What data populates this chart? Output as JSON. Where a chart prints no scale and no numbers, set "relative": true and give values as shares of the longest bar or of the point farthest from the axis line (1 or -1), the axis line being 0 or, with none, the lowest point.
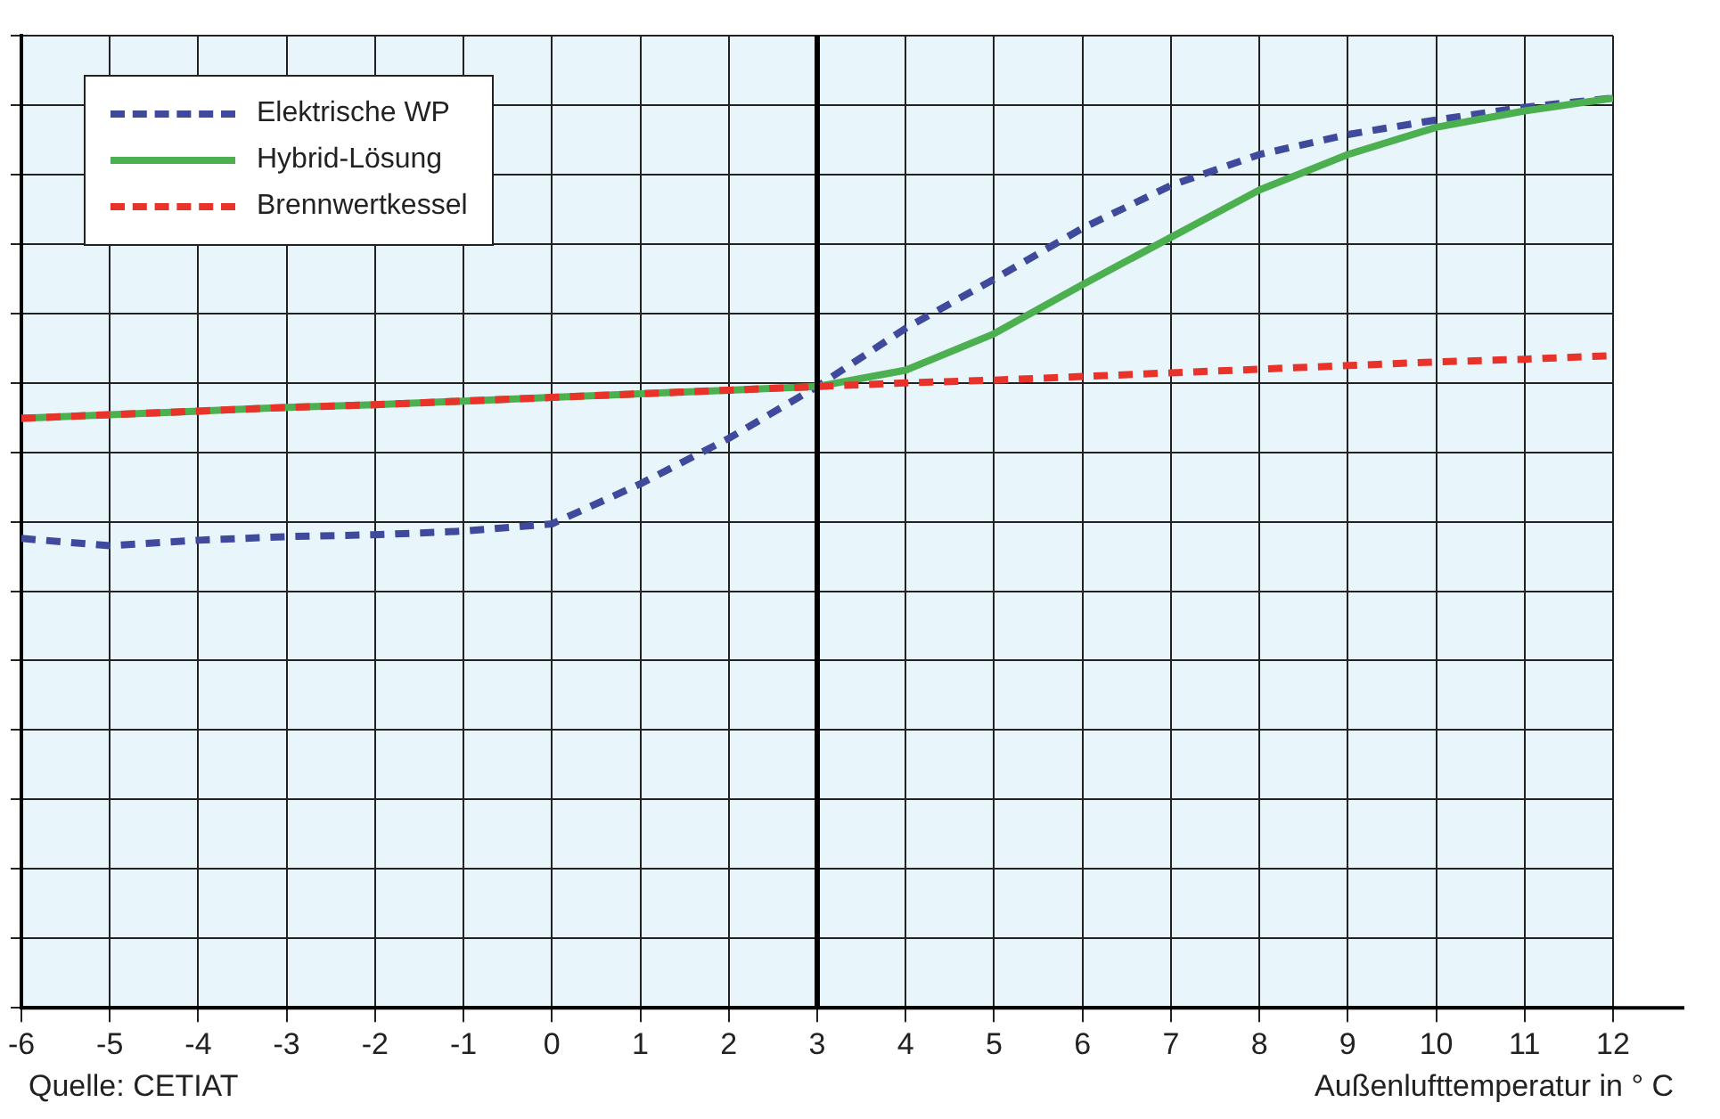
{
  "chart_data": {
    "type": "line",
    "xlabel": "Außenlufttemperatur in ° C",
    "annotations": [
      "Quelle: CETIAT"
    ],
    "relative": true,
    "x": [
      -6,
      -5,
      -4,
      -3,
      -2,
      -1,
      0,
      1,
      2,
      3,
      4,
      5,
      6,
      7,
      8,
      9,
      10,
      11,
      12
    ],
    "xlim": [
      -6,
      12
    ],
    "xticks": [
      -6,
      -5,
      -4,
      -3,
      -2,
      -1,
      0,
      1,
      2,
      3,
      4,
      5,
      6,
      7,
      8,
      9,
      10,
      11,
      12
    ],
    "tick_labels": "x",
    "grid": true,
    "legend": "top left",
    "marker": "none",
    "series": [
      {
        "name": "Elektrische WP",
        "color": "#3f4a9c",
        "line_style": "dashed",
        "values": [
          0.516,
          0.508,
          0.514,
          0.518,
          0.52,
          0.524,
          0.532,
          0.576,
          0.626,
          0.683,
          0.747,
          0.801,
          0.857,
          0.904,
          0.938,
          0.96,
          0.976,
          0.99,
          1
        ]
      },
      {
        "name": "Hybrid-Lösung",
        "color": "#4caf50",
        "line_style": "solid",
        "values": [
          0.648,
          0.652,
          0.656,
          0.66,
          0.663,
          0.667,
          0.671,
          0.675,
          0.679,
          0.683,
          0.701,
          0.741,
          0.795,
          0.847,
          0.899,
          0.938,
          0.968,
          0.986,
          1
        ]
      },
      {
        "name": "Brennwertkessel",
        "color": "#e8322a",
        "line_style": "dashed",
        "values": [
          0.648,
          0.652,
          0.656,
          0.66,
          0.663,
          0.667,
          0.671,
          0.675,
          0.679,
          0.683,
          0.687,
          0.69,
          0.694,
          0.698,
          0.702,
          0.706,
          0.71,
          0.713,
          0.717
        ]
      }
    ],
    "ref_lines": [
      {
        "axis": "x",
        "value": 3,
        "label": null,
        "color": "#000000"
      }
    ]
  }
}
